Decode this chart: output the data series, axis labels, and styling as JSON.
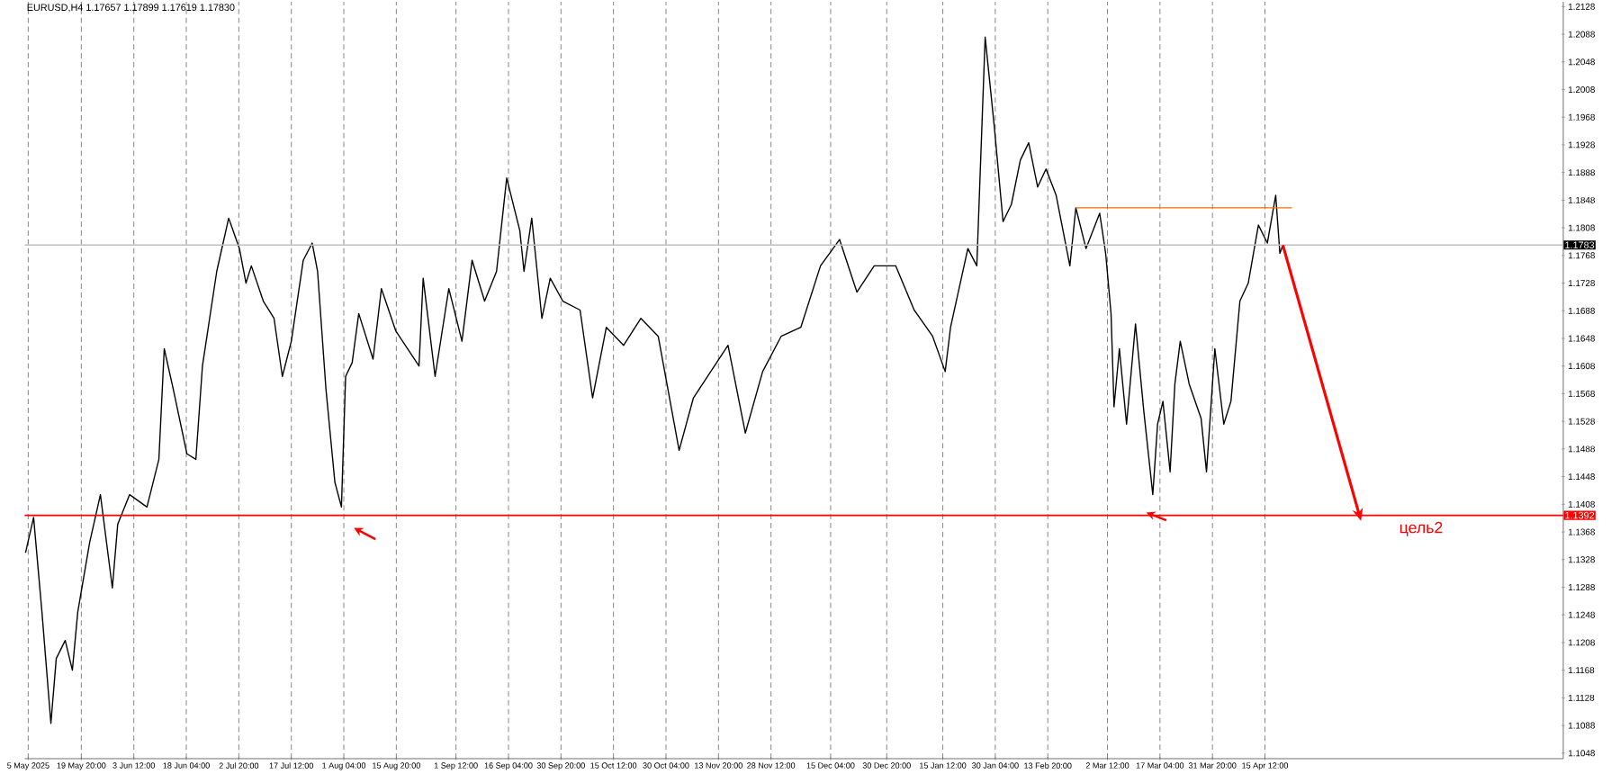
{
  "chart_data": {
    "type": "line",
    "title": "EURUSD,H4  1.17657 1.17899 1.17619 1.17830",
    "series": [
      {
        "color": "#000000",
        "x": [
          "2025-05-04T06:00",
          "2025-05-06T12:00",
          "2025-05-08T20:00",
          "2025-05-11T08:00",
          "2025-05-12T20:00",
          "2025-05-15T08:00",
          "2025-05-17T08:00",
          "2025-05-18T20:00",
          "2025-05-22T04:00",
          "2025-05-25T04:00",
          "2025-05-28T12:00",
          "2025-05-30T00:00",
          "2025-06-02T08:00",
          "2025-06-07T04:00",
          "2025-06-10T12:00",
          "2025-06-12T00:00",
          "2025-06-14T12:00",
          "2025-06-18T08:00",
          "2025-06-20T20:00",
          "2025-06-22T16:00",
          "2025-06-26T16:00",
          "2025-06-30T00:00",
          "2025-07-03T00:00",
          "2025-07-04T20:00",
          "2025-07-06T08:00",
          "2025-07-09T16:00",
          "2025-07-12T16:00",
          "2025-07-15T00:00",
          "2025-07-17T12:00",
          "2025-07-20T20:00",
          "2025-07-23T08:00",
          "2025-07-24T20:00",
          "2025-07-27T04:00",
          "2025-07-29T16:00",
          "2025-07-31T12:00",
          "2025-08-01T16:00",
          "2025-08-03T12:00",
          "2025-08-05T08:00",
          "2025-08-09T08:00",
          "2025-08-11T16:00",
          "2025-08-15T16:00",
          "2025-08-22T04:00",
          "2025-08-23T08:00",
          "2025-08-26T16:00",
          "2025-08-30T12:00",
          "2025-09-03T04:00",
          "2025-09-06T00:00",
          "2025-09-09T12:00",
          "2025-09-12T20:00",
          "2025-09-15T16:00",
          "2025-09-19T08:00",
          "2025-09-20T12:00",
          "2025-09-22T16:00",
          "2025-09-25T12:00",
          "2025-09-27T20:00",
          "2025-10-01T08:00",
          "2025-10-06T04:00",
          "2025-10-09T16:00",
          "2025-10-13T12:00",
          "2025-10-18T08:00",
          "2025-10-23T04:00",
          "2025-10-28T00:00",
          "2025-11-02T20:00",
          "2025-11-06T20:00",
          "2025-11-11T16:00",
          "2025-11-16T12:00",
          "2025-11-21T08:00",
          "2025-11-26T04:00",
          "2025-12-01T08:00",
          "2025-12-06T20:00",
          "2025-12-12T08:00",
          "2025-12-17T16:00",
          "2025-12-22T12:00",
          "2025-12-27T08:00",
          "2026-01-02T08:00",
          "2026-01-07T12:00",
          "2026-01-12T16:00",
          "2026-01-16T04:00",
          "2026-01-17T16:00",
          "2026-01-22T12:00",
          "2026-01-25T00:00",
          "2026-01-27T08:00",
          "2026-01-29T20:00",
          "2026-02-01T08:00",
          "2026-02-03T16:00",
          "2026-02-06T04:00",
          "2026-02-08T12:00",
          "2026-02-11T00:00",
          "2026-02-13T08:00",
          "2026-02-16T04:00",
          "2026-02-20T00:00",
          "2026-02-21T16:00",
          "2026-02-24T12:00",
          "2026-02-28T08:00",
          "2026-03-02T00:00",
          "2026-03-03T12:00",
          "2026-03-04T08:00",
          "2026-03-05T20:00",
          "2026-03-07T20:00",
          "2026-03-10T08:00",
          "2026-03-12T16:00",
          "2026-03-15T04:00",
          "2026-03-16T12:00",
          "2026-03-18T00:00",
          "2026-03-20T00:00",
          "2026-03-21T08:00",
          "2026-03-22T20:00",
          "2026-03-25T08:00",
          "2026-03-28T16:00",
          "2026-03-30T04:00",
          "2026-04-01T12:00",
          "2026-04-04T00:00",
          "2026-04-06T00:00",
          "2026-04-08T12:00",
          "2026-04-10T20:00",
          "2026-04-13T16:00",
          "2026-04-16T04:00",
          "2026-04-18T12:00",
          "2026-04-19T16:00",
          "2026-04-20T12:00"
        ],
        "values": [
          1.1338,
          1.1389,
          1.1252,
          1.1091,
          1.1185,
          1.1211,
          1.1168,
          1.1252,
          1.1353,
          1.1422,
          1.1287,
          1.1379,
          1.1422,
          1.1404,
          1.1473,
          1.1633,
          1.1575,
          1.1481,
          1.1473,
          1.1608,
          1.1745,
          1.1822,
          1.1778,
          1.1728,
          1.1753,
          1.1702,
          1.1677,
          1.1593,
          1.1644,
          1.1761,
          1.1786,
          1.1745,
          1.1575,
          1.144,
          1.1404,
          1.1593,
          1.1613,
          1.1684,
          1.1618,
          1.172,
          1.1659,
          1.1608,
          1.1735,
          1.1593,
          1.172,
          1.1644,
          1.1761,
          1.1702,
          1.1745,
          1.188,
          1.1804,
          1.1745,
          1.1822,
          1.1677,
          1.1735,
          1.1702,
          1.1689,
          1.1562,
          1.1664,
          1.1638,
          1.1677,
          1.1651,
          1.1486,
          1.1562,
          1.16,
          1.1638,
          1.1511,
          1.16,
          1.1651,
          1.1664,
          1.1753,
          1.1791,
          1.1715,
          1.1753,
          1.1753,
          1.1689,
          1.1651,
          1.16,
          1.1664,
          1.1778,
          1.1753,
          1.2084,
          1.1957,
          1.1817,
          1.1842,
          1.1906,
          1.1931,
          1.1867,
          1.1893,
          1.1855,
          1.1753,
          1.1837,
          1.1778,
          1.1829,
          1.1771,
          1.1684,
          1.1549,
          1.1633,
          1.1524,
          1.1669,
          1.1542,
          1.1422,
          1.1524,
          1.1557,
          1.1455,
          1.1582,
          1.1644,
          1.1582,
          1.1532,
          1.1455,
          1.1633,
          1.1524,
          1.1557,
          1.1702,
          1.1728,
          1.1812,
          1.1786,
          1.1855,
          1.1771,
          1.1783
        ]
      },
      {
        "color": "#ff6a00",
        "x": [
          "2026-02-21T16:00",
          "2026-04-23T00:00"
        ],
        "values": [
          1.1837,
          1.1837
        ]
      }
    ],
    "xlim": [
      "2025-05-04T00:00",
      "2026-07-07T20:00"
    ],
    "ylim": [
      1.104,
      1.2135
    ],
    "xticks": [
      {
        "value": "2025-05-05T00:00",
        "label": "5 May 2025"
      },
      {
        "value": "2025-05-19T20:00",
        "label": "19 May 20:00"
      },
      {
        "value": "2025-06-03T12:00",
        "label": "3 Jun 12:00"
      },
      {
        "value": "2025-06-18T04:00",
        "label": "18 Jun 04:00"
      },
      {
        "value": "2025-07-02T20:00",
        "label": "2 Jul 20:00"
      },
      {
        "value": "2025-07-17T12:00",
        "label": "17 Jul 12:00"
      },
      {
        "value": "2025-08-01T04:00",
        "label": "1 Aug 04:00"
      },
      {
        "value": "2025-08-15T20:00",
        "label": "15 Aug 20:00"
      },
      {
        "value": "2025-09-01T12:00",
        "label": "1 Sep 12:00"
      },
      {
        "value": "2025-09-16T04:00",
        "label": "16 Sep 04:00"
      },
      {
        "value": "2025-09-30T20:00",
        "label": "30 Sep 20:00"
      },
      {
        "value": "2025-10-15T12:00",
        "label": "15 Oct 12:00"
      },
      {
        "value": "2025-10-30T04:00",
        "label": "30 Oct 04:00"
      },
      {
        "value": "2025-11-13T20:00",
        "label": "13 Nov 20:00"
      },
      {
        "value": "2025-11-28T12:00",
        "label": "28 Nov 12:00"
      },
      {
        "value": "2025-12-15T04:00",
        "label": "15 Dec 04:00"
      },
      {
        "value": "2025-12-30T20:00",
        "label": "30 Dec 20:00"
      },
      {
        "value": "2026-01-15T12:00",
        "label": "15 Jan 12:00"
      },
      {
        "value": "2026-01-30T04:00",
        "label": "30 Jan 04:00"
      },
      {
        "value": "2026-02-13T20:00",
        "label": "13 Feb 20:00"
      },
      {
        "value": "2026-03-02T12:00",
        "label": "2 Mar 12:00"
      },
      {
        "value": "2026-03-17T04:00",
        "label": "17 Mar 04:00"
      },
      {
        "value": "2026-03-31T20:00",
        "label": "31 Mar 20:00"
      },
      {
        "value": "2026-04-15T12:00",
        "label": "15 Apr 12:00"
      }
    ],
    "yticks": [
      1.1048,
      1.1088,
      1.1128,
      1.1168,
      1.1208,
      1.1248,
      1.1288,
      1.1328,
      1.1368,
      1.1408,
      1.1448,
      1.1488,
      1.1528,
      1.1568,
      1.1608,
      1.1648,
      1.1688,
      1.1728,
      1.1768,
      1.1808,
      1.1848,
      1.1888,
      1.1928,
      1.1968,
      1.2008,
      1.2048,
      1.2088,
      1.2128
    ],
    "ref_lines": [
      {
        "axis": "y",
        "value": 1.1392,
        "label": "1.1392",
        "color": "#ff0000"
      },
      {
        "axis": "y",
        "value": 1.1783,
        "label": "1.1783",
        "color": "#c0c0c0"
      }
    ],
    "annotations": [
      {
        "text": "цель2",
        "x": "2026-05-12T08:00",
        "y": 1.1384
      }
    ],
    "grid": "x"
  }
}
